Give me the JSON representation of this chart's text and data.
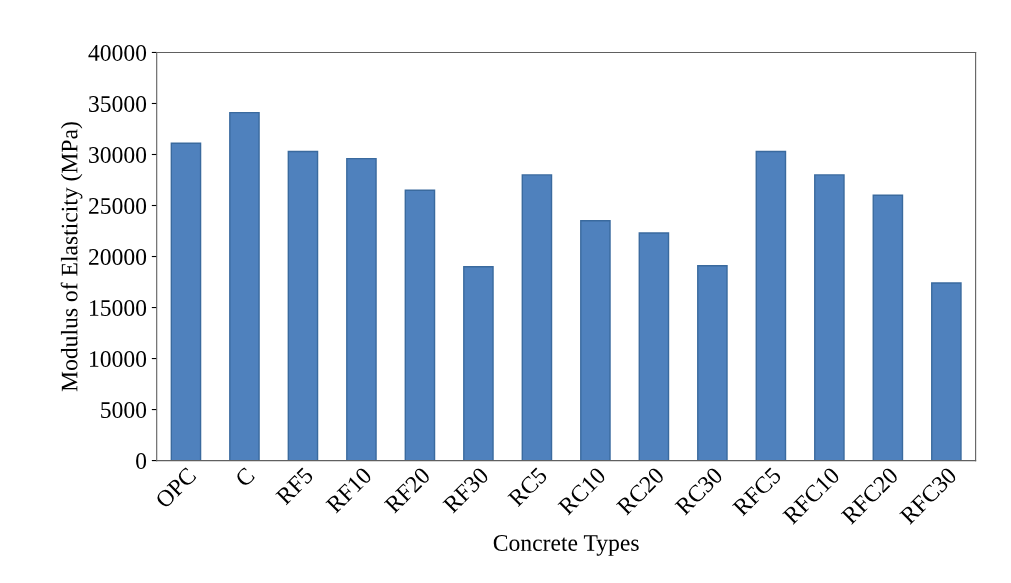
{
  "chart_data": {
    "type": "bar",
    "xlabel": "Concrete Types",
    "ylabel": "Modulus of Elasticity (MPa)",
    "categories": [
      "OPC",
      "C",
      "RF5",
      "RF10",
      "RF20",
      "RF30",
      "RC5",
      "RC10",
      "RC20",
      "RC30",
      "RFC5",
      "RFC10",
      "RFC20",
      "RFC30"
    ],
    "values": [
      31100,
      34100,
      30300,
      29600,
      26500,
      19000,
      28000,
      23500,
      22300,
      19100,
      30300,
      28000,
      26000,
      17400
    ],
    "color": "#4f81bd",
    "ylim": [
      0,
      40000
    ],
    "yticks": [
      0,
      5000,
      10000,
      15000,
      20000,
      25000,
      30000,
      35000,
      40000
    ],
    "grid": false,
    "legend": false
  }
}
